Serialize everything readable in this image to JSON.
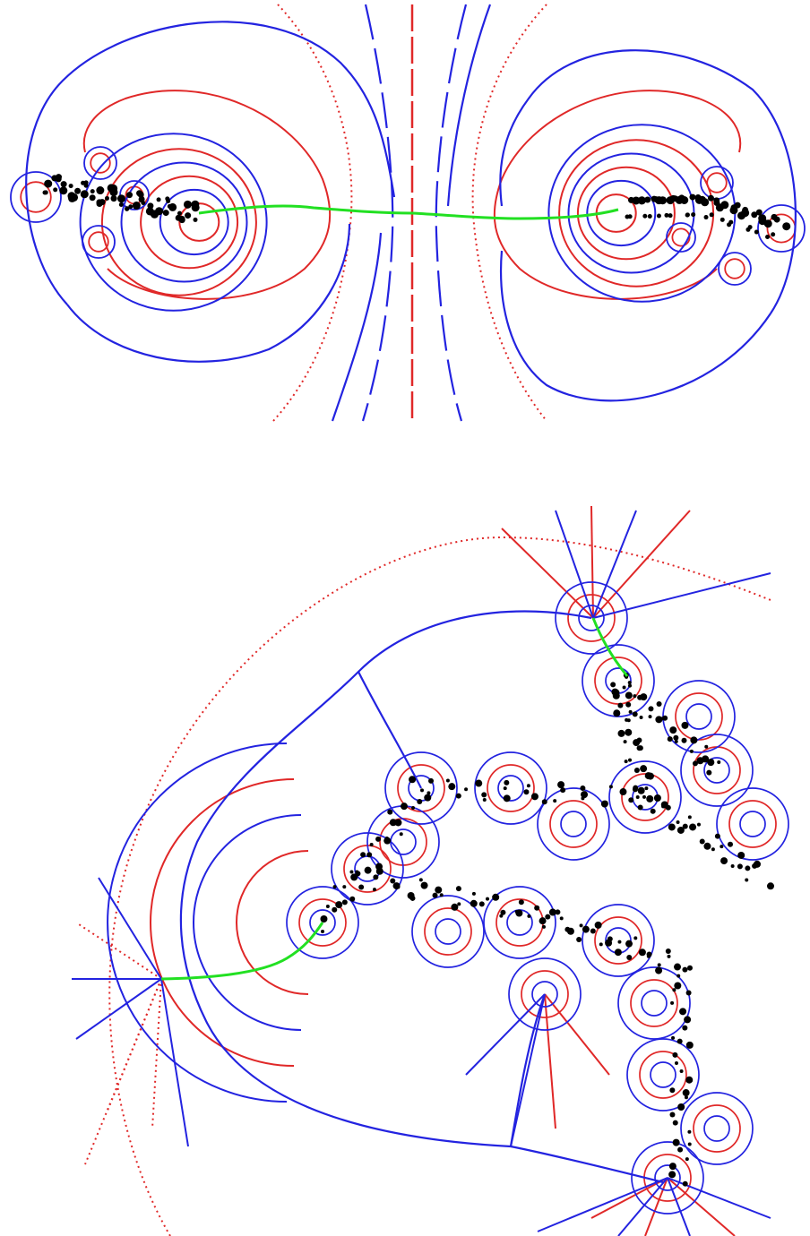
{
  "figure": {
    "panels": [
      "top",
      "bottom"
    ],
    "colors": {
      "background": "#ffffff",
      "external_rays": "#2323e0",
      "equipotential_curves": "#e02828",
      "spine": "#22e022",
      "fractal_set": "#000000"
    },
    "icons": [
      "fractal-set-icon"
    ]
  }
}
